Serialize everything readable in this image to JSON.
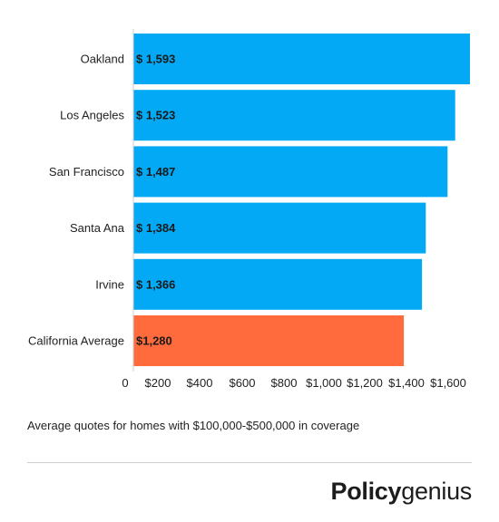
{
  "chart_data": {
    "type": "bar",
    "orientation": "horizontal",
    "categories": [
      "Oakland",
      "Los Angeles",
      "San Francisco",
      "Santa Ana",
      "Irvine",
      "California Average"
    ],
    "values": [
      1593,
      1523,
      1487,
      1384,
      1366,
      1280
    ],
    "value_labels": [
      "$ 1,593",
      "$ 1,523",
      "$ 1,487",
      "$ 1,384",
      "$ 1,366",
      "$1,280"
    ],
    "bar_colors": [
      "#03a9f4",
      "#03a9f4",
      "#03a9f4",
      "#03a9f4",
      "#03a9f4",
      "#ff6b3d"
    ],
    "x_ticks": [
      0,
      200,
      400,
      600,
      800,
      1000,
      1200,
      1400,
      1600
    ],
    "x_tick_labels": [
      "0",
      "$200",
      "$400",
      "$600",
      "$800",
      "$1,000",
      "$1,200",
      "$1,400",
      "$1,600"
    ],
    "xlim": [
      0,
      1600
    ],
    "grid": false,
    "legend": "none"
  },
  "caption": "Average quotes for homes with $100,000-$500,000 in coverage",
  "brand": {
    "bold": "Policy",
    "light": "genius"
  }
}
